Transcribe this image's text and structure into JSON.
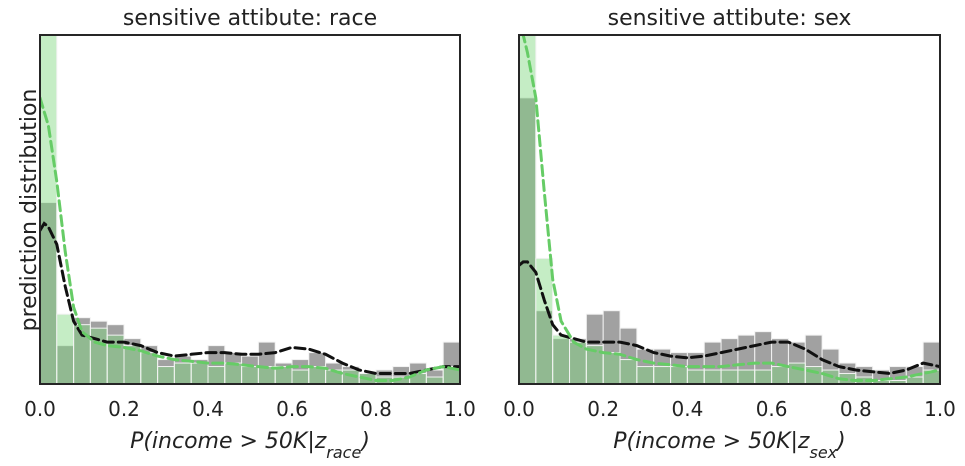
{
  "ylabel": "prediction distribution",
  "chart_data": [
    {
      "type": "histogram",
      "title": "sensitive attibute: race",
      "xlabel": {
        "pre": "P(income > 50K|z",
        "sub": "race",
        "post": ")"
      },
      "xlim": [
        0,
        1
      ],
      "ylim": [
        0,
        1
      ],
      "xticks": [
        "0.0",
        "0.2",
        "0.4",
        "0.6",
        "0.8",
        "1.0"
      ],
      "bin_width": 0.04,
      "colors": {
        "dark_series": "#6e6e6e",
        "green_series": "#7ed67e",
        "dark_kde": "#111111",
        "green_kde": "#66cc66"
      },
      "series": [
        {
          "values": [
            0.52,
            0.11,
            0.19,
            0.18,
            0.17,
            0.13,
            0.11,
            0.07,
            0.08,
            0.07,
            0.11,
            0.09,
            0.08,
            0.12,
            0.06,
            0.07,
            0.09,
            0.06,
            0.05,
            0.03,
            0.04,
            0.05,
            0.06,
            0.04,
            0.12
          ]
        },
        {
          "values": [
            1.0,
            0.2,
            0.17,
            0.16,
            0.14,
            0.11,
            0.09,
            0.05,
            0.06,
            0.06,
            0.05,
            0.06,
            0.05,
            0.05,
            0.05,
            0.04,
            0.05,
            0.04,
            0.04,
            0.03,
            0.02,
            0.02,
            0.03,
            0.02,
            0.05
          ]
        }
      ],
      "kde": [
        {
          "x": [
            0.0,
            0.01,
            0.02,
            0.04,
            0.06,
            0.08,
            0.1,
            0.13,
            0.16,
            0.2,
            0.24,
            0.28,
            0.32,
            0.36,
            0.4,
            0.44,
            0.48,
            0.52,
            0.56,
            0.6,
            0.64,
            0.68,
            0.72,
            0.76,
            0.8,
            0.84,
            0.88,
            0.92,
            0.96,
            1.0
          ],
          "y": [
            0.44,
            0.46,
            0.45,
            0.4,
            0.28,
            0.18,
            0.14,
            0.13,
            0.12,
            0.12,
            0.11,
            0.09,
            0.08,
            0.085,
            0.09,
            0.09,
            0.085,
            0.085,
            0.09,
            0.105,
            0.1,
            0.085,
            0.06,
            0.04,
            0.03,
            0.03,
            0.03,
            0.04,
            0.05,
            0.05
          ]
        },
        {
          "x": [
            0.0,
            0.01,
            0.02,
            0.04,
            0.06,
            0.08,
            0.1,
            0.13,
            0.16,
            0.2,
            0.24,
            0.28,
            0.32,
            0.36,
            0.4,
            0.44,
            0.48,
            0.52,
            0.56,
            0.6,
            0.64,
            0.68,
            0.72,
            0.76,
            0.8,
            0.84,
            0.88,
            0.92,
            0.96,
            1.0
          ],
          "y": [
            0.82,
            0.78,
            0.74,
            0.58,
            0.38,
            0.22,
            0.15,
            0.12,
            0.11,
            0.105,
            0.095,
            0.08,
            0.07,
            0.065,
            0.06,
            0.06,
            0.055,
            0.05,
            0.045,
            0.05,
            0.05,
            0.045,
            0.03,
            0.02,
            0.01,
            0.01,
            0.02,
            0.04,
            0.05,
            0.04
          ]
        }
      ]
    },
    {
      "type": "histogram",
      "title": "sensitive attibute: sex",
      "xlabel": {
        "pre": "P(income > 50K|z",
        "sub": "sex",
        "post": ")"
      },
      "xlim": [
        0,
        1
      ],
      "ylim": [
        0,
        1
      ],
      "xticks": [
        "0.0",
        "0.2",
        "0.4",
        "0.6",
        "0.8",
        "1.0"
      ],
      "bin_width": 0.04,
      "colors": {
        "dark_series": "#6e6e6e",
        "green_series": "#7ed67e",
        "dark_kde": "#111111",
        "green_kde": "#66cc66"
      },
      "series": [
        {
          "values": [
            0.82,
            0.21,
            0.13,
            0.13,
            0.2,
            0.21,
            0.16,
            0.1,
            0.1,
            0.09,
            0.09,
            0.12,
            0.13,
            0.14,
            0.15,
            0.13,
            0.12,
            0.14,
            0.1,
            0.06,
            0.05,
            0.04,
            0.05,
            0.05,
            0.12
          ]
        },
        {
          "values": [
            1.0,
            0.36,
            0.14,
            0.12,
            0.11,
            0.09,
            0.07,
            0.05,
            0.05,
            0.05,
            0.04,
            0.04,
            0.04,
            0.04,
            0.04,
            0.05,
            0.06,
            0.05,
            0.04,
            0.03,
            0.02,
            0.01,
            0.01,
            0.02,
            0.04
          ]
        }
      ],
      "kde": [
        {
          "x": [
            0.0,
            0.01,
            0.02,
            0.04,
            0.06,
            0.08,
            0.1,
            0.13,
            0.16,
            0.2,
            0.24,
            0.28,
            0.32,
            0.36,
            0.4,
            0.44,
            0.48,
            0.52,
            0.56,
            0.6,
            0.64,
            0.68,
            0.72,
            0.76,
            0.8,
            0.84,
            0.88,
            0.92,
            0.96,
            1.0
          ],
          "y": [
            0.34,
            0.35,
            0.35,
            0.32,
            0.24,
            0.17,
            0.14,
            0.13,
            0.12,
            0.12,
            0.12,
            0.11,
            0.09,
            0.08,
            0.075,
            0.08,
            0.09,
            0.1,
            0.11,
            0.12,
            0.12,
            0.1,
            0.07,
            0.05,
            0.04,
            0.035,
            0.03,
            0.04,
            0.06,
            0.05
          ]
        },
        {
          "x": [
            0.0,
            0.01,
            0.02,
            0.04,
            0.06,
            0.08,
            0.1,
            0.13,
            0.16,
            0.2,
            0.24,
            0.28,
            0.32,
            0.36,
            0.4,
            0.44,
            0.48,
            0.52,
            0.56,
            0.6,
            0.64,
            0.68,
            0.72,
            0.76,
            0.8,
            0.84,
            0.88,
            0.92,
            0.96,
            1.0
          ],
          "y": [
            1.05,
            1.0,
            0.95,
            0.82,
            0.55,
            0.3,
            0.18,
            0.12,
            0.1,
            0.09,
            0.085,
            0.07,
            0.06,
            0.055,
            0.05,
            0.05,
            0.05,
            0.055,
            0.06,
            0.06,
            0.05,
            0.04,
            0.03,
            0.015,
            0.01,
            0.01,
            0.015,
            0.02,
            0.03,
            0.04
          ]
        }
      ]
    }
  ]
}
